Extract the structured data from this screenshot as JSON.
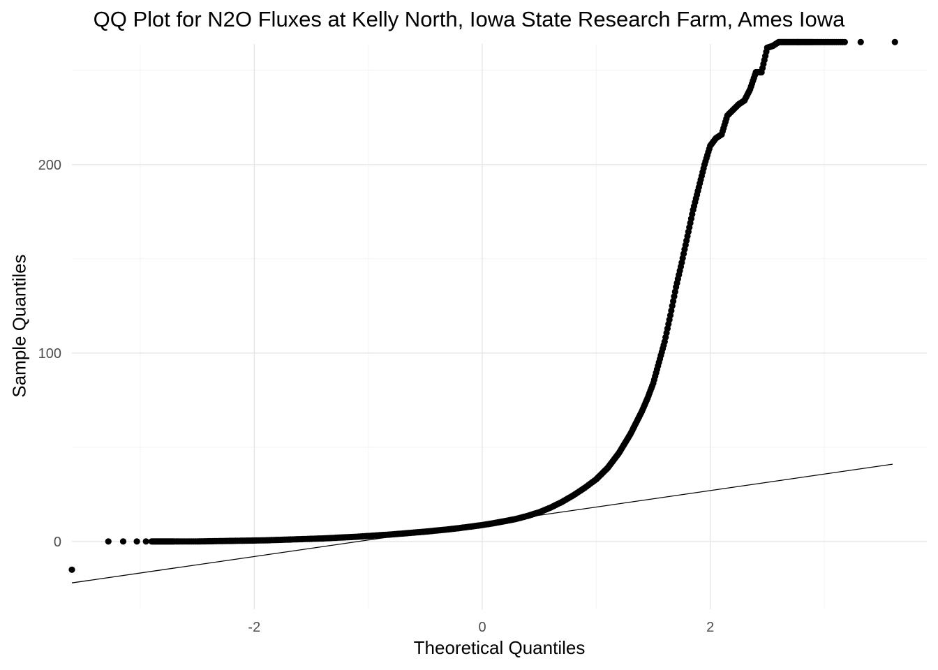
{
  "chart_data": {
    "type": "scatter",
    "title": "QQ Plot for N2O Fluxes at Kelly North, Iowa State Research Farm, Ames Iowa",
    "xlabel": "Theoretical Quantiles",
    "ylabel": "Sample Quantiles",
    "xlim": [
      -3.6,
      3.9
    ],
    "ylim": [
      -36,
      264
    ],
    "x_ticks": [
      -2,
      0,
      2
    ],
    "x_tick_labels": [
      "-2",
      "0",
      "2"
    ],
    "y_ticks": [
      0,
      100,
      200
    ],
    "y_tick_labels": [
      "0",
      "100",
      "200"
    ],
    "x_minor_ticks": [
      -3,
      -1,
      1,
      3
    ],
    "y_minor_ticks": [
      50,
      150,
      250
    ],
    "grid": true,
    "legend": "none",
    "point_color": "#000000",
    "line_color": "#000000",
    "reference_line": {
      "x": [
        -3.6,
        3.6
      ],
      "y": [
        -22,
        41
      ]
    },
    "series": [
      {
        "x": [
          -3.6,
          -3.28,
          -3.15,
          -3.03,
          -2.95,
          -2.9,
          -2.85,
          -2.8,
          -2.75,
          -2.7,
          -2.6,
          -2.5,
          -2.4,
          -2.3,
          -2.2,
          -2.1,
          -2.0,
          -1.9,
          -1.8,
          -1.7,
          -1.6,
          -1.5,
          -1.4,
          -1.3,
          -1.2,
          -1.1,
          -1.0,
          -0.9,
          -0.8,
          -0.7,
          -0.6,
          -0.5,
          -0.4,
          -0.3,
          -0.2,
          -0.1,
          0.0,
          0.1,
          0.2,
          0.3,
          0.4,
          0.5,
          0.6,
          0.7,
          0.8,
          0.9,
          1.0,
          1.05,
          1.1,
          1.15,
          1.2,
          1.25,
          1.3,
          1.35,
          1.4,
          1.45,
          1.5,
          1.55,
          1.6,
          1.65,
          1.7,
          1.75,
          1.8,
          1.85,
          1.9,
          1.95,
          2.0,
          2.05,
          2.1,
          2.15,
          2.2,
          2.25,
          2.3,
          2.35,
          2.4,
          2.45,
          2.5,
          2.55,
          2.6,
          2.65,
          2.7,
          2.75,
          2.8,
          2.85,
          2.9,
          2.98,
          3.07,
          3.18,
          3.32,
          3.62
        ],
        "y": [
          -15,
          0,
          0,
          0,
          0,
          0,
          0,
          0,
          0,
          0,
          0,
          0,
          0.1,
          0.2,
          0.3,
          0.4,
          0.5,
          0.6,
          0.8,
          1.0,
          1.2,
          1.4,
          1.6,
          1.9,
          2.2,
          2.5,
          2.9,
          3.3,
          3.7,
          4.2,
          4.7,
          5.2,
          5.8,
          6.4,
          7.1,
          7.9,
          8.7,
          9.7,
          10.8,
          12.0,
          13.6,
          15.5,
          18,
          21,
          24.5,
          28.5,
          33,
          36,
          39,
          43,
          47,
          52,
          57,
          63,
          69,
          76,
          84,
          95,
          106,
          120,
          135,
          148,
          162,
          176,
          188,
          200,
          210,
          214,
          216,
          226,
          229,
          232,
          234,
          240,
          249,
          249,
          262,
          263,
          265,
          265,
          265,
          265,
          265,
          265,
          265,
          265,
          265,
          265,
          265,
          265
        ]
      }
    ]
  }
}
